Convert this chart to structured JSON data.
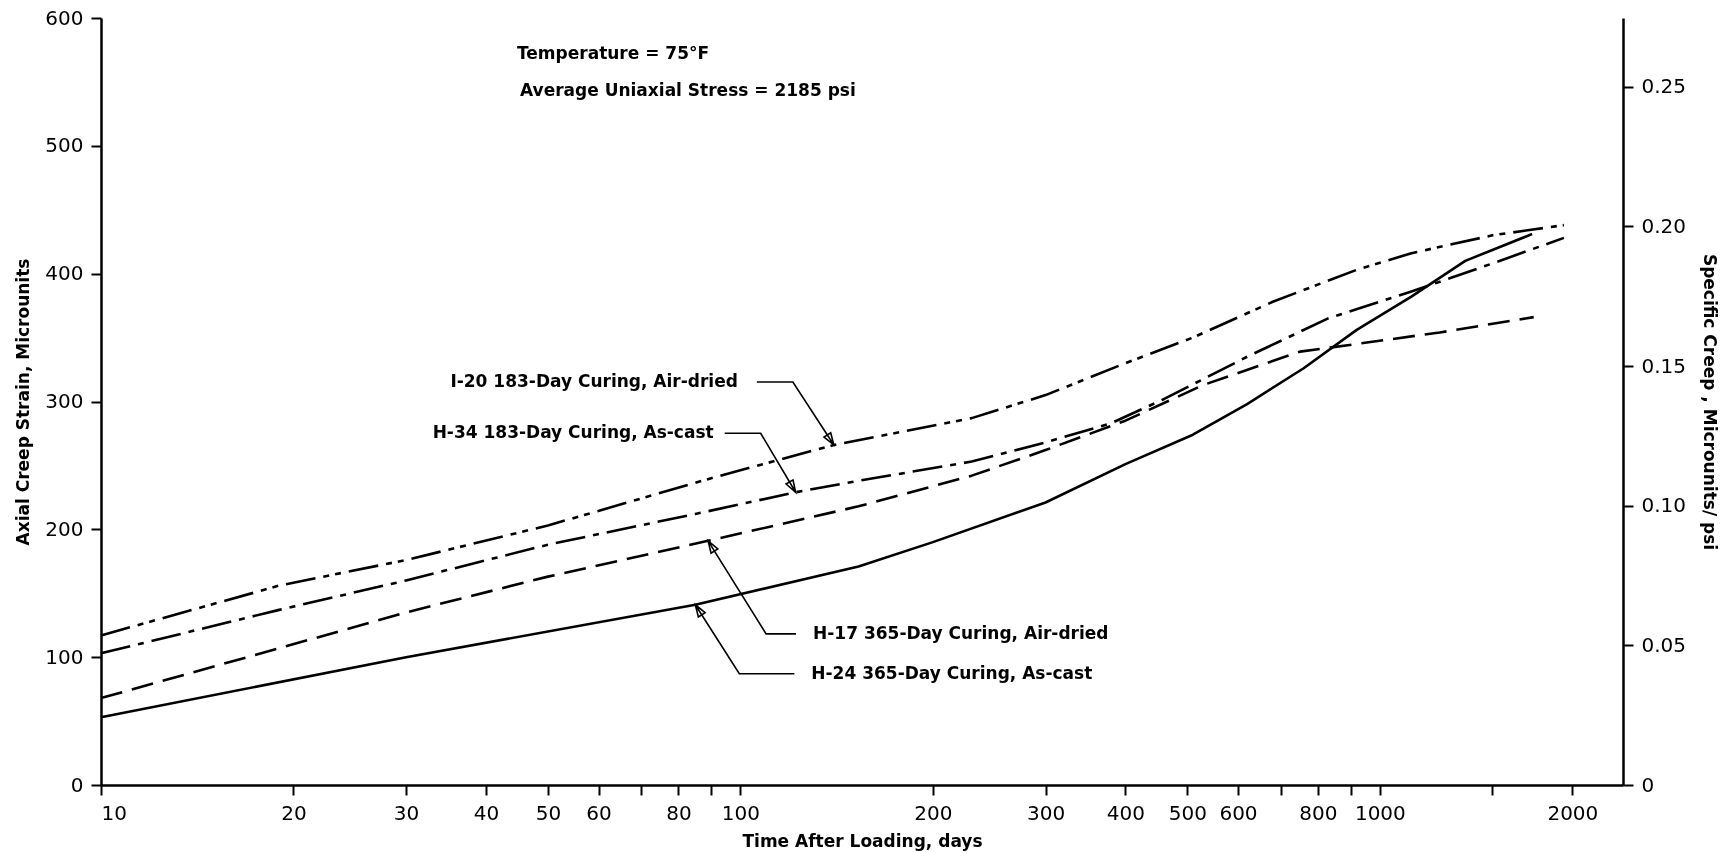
{
  "chart_data": {
    "type": "line",
    "xlabel": "Time After Loading, days",
    "ylabel": "Axial Creep Strain,  Microunits",
    "y2label": "Specific Creep ,  Microunits/ psi",
    "annotations": [
      "Temperature = 75°F",
      "Average Uniaxial Stress = 2185 psi",
      {
        "text": "I-20  183-Day Curing, Air-dried",
        "x": 140,
        "y": 266
      },
      {
        "text": "H-34  183-Day Curing, As-cast",
        "x": 122,
        "y": 229
      },
      {
        "text": "H-17  365-Day Curing, Air-dried",
        "x": 89,
        "y": 191
      },
      {
        "text": "H-24  365-Day Curing, As-cast",
        "x": 85,
        "y": 141
      }
    ],
    "series": [
      {
        "color": "#000000",
        "line_style": "dashdotdot",
        "x": [
          10,
          19,
          30,
          50,
          90,
          140,
          230,
          300,
          400,
          510,
          680,
          920,
          1120,
          1500,
          1940
        ],
        "values": [
          117,
          156,
          176,
          203,
          240,
          266,
          287,
          305,
          330,
          350,
          378,
          403,
          416,
          430,
          438
        ]
      },
      {
        "color": "#000000",
        "line_style": "dashdot",
        "x": [
          10,
          19,
          30,
          50,
          85,
          122,
          153,
          230,
          300,
          380,
          460,
          620,
          830,
          1120,
          1500,
          1940
        ],
        "values": [
          103,
          137,
          160,
          188,
          212,
          229,
          238,
          253,
          268,
          283,
          302,
          335,
          365,
          386,
          408,
          428
        ]
      },
      {
        "color": "#000000",
        "line_style": "dashed",
        "x": [
          10,
          19,
          30,
          50,
          89,
          153,
          230,
          300,
          400,
          530,
          750,
          920,
          1240,
          1740
        ],
        "values": [
          68,
          107,
          135,
          163,
          191,
          218,
          242,
          262,
          285,
          313,
          339,
          345,
          354,
          366
        ]
      },
      {
        "color": "#000000",
        "line_style": "solid",
        "x": [
          10,
          30,
          85,
          153,
          200,
          300,
          400,
          510,
          620,
          760,
          920,
          1120,
          1360,
          1730
        ],
        "values": [
          53,
          100,
          141,
          171,
          190,
          221,
          251,
          274,
          298,
          326,
          356,
          382,
          410,
          431
        ]
      }
    ],
    "log": "x",
    "xlim": [
      10,
      2400
    ],
    "xticks": [
      10,
      20,
      30,
      40,
      50,
      60,
      {
        "value": 70,
        "label": null
      },
      80,
      {
        "value": 90,
        "label": null
      },
      100,
      200,
      300,
      400,
      500,
      600,
      {
        "value": 700,
        "label": null
      },
      800,
      {
        "value": 900,
        "label": null
      },
      1000,
      {
        "value": 1500,
        "label": null
      },
      2000
    ],
    "ylim": [
      0,
      600
    ],
    "yticks": [
      0,
      100,
      200,
      300,
      400,
      500,
      600
    ],
    "y2lim": [
      0,
      0.2746
    ],
    "y2ticks": [
      0,
      0.05,
      {
        "value": 0.1,
        "label": "0.10"
      },
      0.15,
      {
        "value": 0.2,
        "label": "0.20"
      },
      0.25
    ],
    "grid": false
  }
}
